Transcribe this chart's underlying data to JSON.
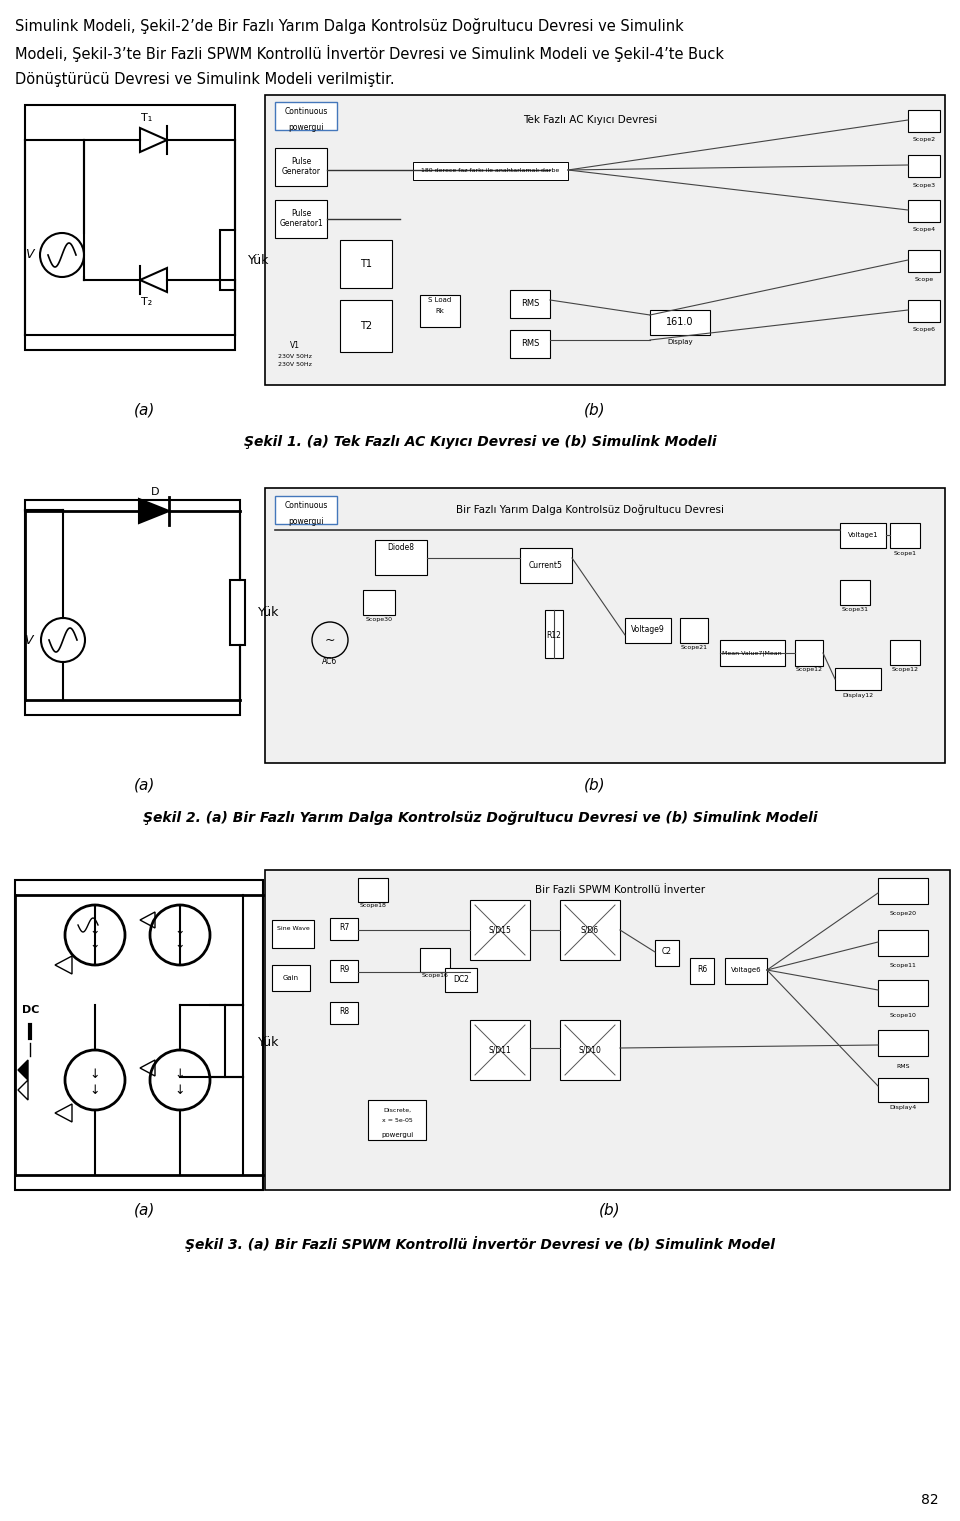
{
  "page_width": 9.6,
  "page_height": 15.21,
  "bg_color": "#ffffff",
  "text_color": "#000000",
  "header_text_line1": "Simulink Modeli, Şekil-2’de Bir Fazlı Yarım Dalga Kontrolsüz Doğrultucu Devresi ve Simulink",
  "header_text_line2": "Modeli, Şekil-3’te Bir Fazli SPWM Kontrollü İnvertör Devresi ve Simulink Modeli ve Şekil-4’te Buck",
  "header_text_line3": "Dönüştürücü Devresi ve Simulink Modeli verilmiştir.",
  "fig1_caption": "Şekil 1. (a) Tek Fazlı AC Kıyıcı Devresi ve (b) Simulink Modeli",
  "fig2_caption": "Şekil 2. (a) Bir Fazlı Yarım Dalga Kontrolsüz Doğrultucu Devresi ve (b) Simulink Modeli",
  "fig3_caption": "Şekil 3. (a) Bir Fazli SPWM Kontrollü İnvertör Devresi ve (b) Simulink Model",
  "page_number": "82",
  "label_a": "(a)",
  "label_b": "(b)"
}
